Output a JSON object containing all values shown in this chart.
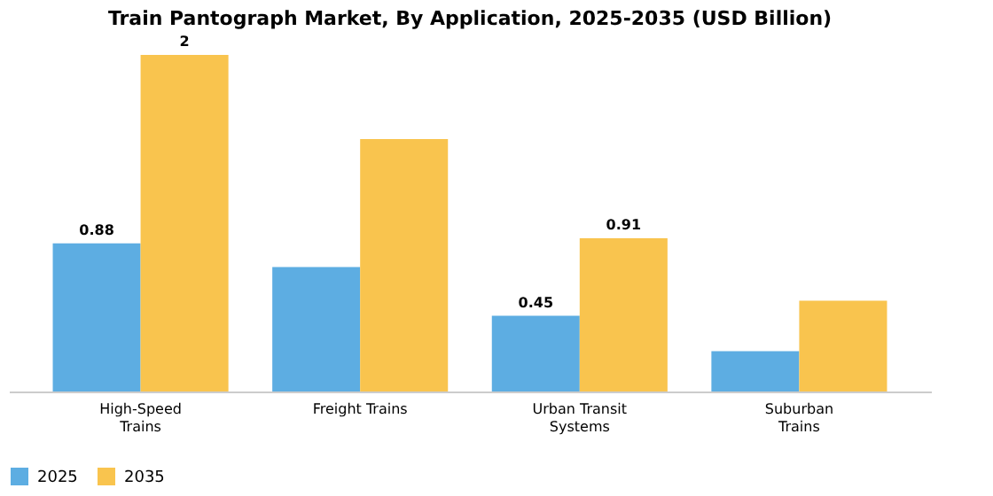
{
  "chart_data": {
    "type": "bar",
    "title": "Train Pantograph Market, By Application, 2025-2035 (USD Billion)",
    "categories": [
      "High-Speed Trains",
      "Freight Trains",
      "Urban Transit Systems",
      "Suburban Trains"
    ],
    "series": [
      {
        "name": "2025",
        "color": "#5dade2",
        "values": [
          0.88,
          0.74,
          0.45,
          0.24
        ],
        "value_labels": [
          "0.88",
          null,
          "0.45",
          null
        ]
      },
      {
        "name": "2035",
        "color": "#f9c44e",
        "values": [
          2,
          1.5,
          0.91,
          0.54
        ],
        "value_labels": [
          "2",
          null,
          "0.91",
          null
        ]
      }
    ],
    "legend": "bottom",
    "grid": false
  }
}
